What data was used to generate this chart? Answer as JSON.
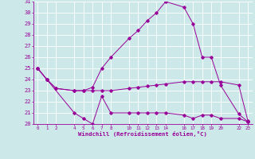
{
  "xlabel": "Windchill (Refroidissement éolien,°C)",
  "background_color": "#cce8e8",
  "line_color": "#990099",
  "ylim": [
    20,
    31
  ],
  "xlim": [
    -0.5,
    23.5
  ],
  "y_ticks": [
    20,
    21,
    22,
    23,
    24,
    25,
    26,
    27,
    28,
    29,
    30,
    31
  ],
  "x_ticks": [
    0,
    1,
    2,
    4,
    5,
    6,
    7,
    8,
    10,
    11,
    12,
    13,
    14,
    16,
    17,
    18,
    19,
    20,
    22,
    23
  ],
  "x_tick_labels": [
    "0",
    "1",
    "2",
    "4",
    "5",
    "6",
    "7",
    "8",
    "10",
    "11",
    "12",
    "13",
    "14",
    "16",
    "17",
    "18",
    "19",
    "20",
    "22",
    "23"
  ],
  "line1_x": [
    0,
    1,
    4,
    5,
    6,
    7,
    8,
    10,
    11,
    12,
    13,
    14,
    16,
    17,
    18,
    19,
    20,
    22,
    23
  ],
  "line1_y": [
    25.0,
    24.0,
    21.0,
    20.5,
    20.0,
    22.5,
    21.0,
    21.0,
    21.0,
    21.0,
    21.0,
    21.0,
    20.8,
    20.5,
    20.8,
    20.8,
    20.5,
    20.5,
    20.2
  ],
  "line2_x": [
    0,
    1,
    2,
    4,
    5,
    6,
    7,
    8,
    10,
    11,
    12,
    13,
    14,
    16,
    17,
    18,
    19,
    20,
    22,
    23
  ],
  "line2_y": [
    25.0,
    24.0,
    23.2,
    23.0,
    23.0,
    23.0,
    23.0,
    23.0,
    23.2,
    23.3,
    23.4,
    23.5,
    23.6,
    23.8,
    23.8,
    23.8,
    23.8,
    23.8,
    23.5,
    20.3
  ],
  "line3_x": [
    0,
    1,
    2,
    4,
    5,
    6,
    7,
    8,
    10,
    11,
    12,
    13,
    14,
    16,
    17,
    18,
    19,
    20,
    22,
    23
  ],
  "line3_y": [
    25.0,
    24.0,
    23.2,
    23.0,
    23.0,
    23.3,
    25.0,
    26.0,
    27.7,
    28.4,
    29.3,
    30.0,
    31.0,
    30.5,
    29.0,
    26.0,
    26.0,
    23.5,
    20.9,
    20.2
  ]
}
